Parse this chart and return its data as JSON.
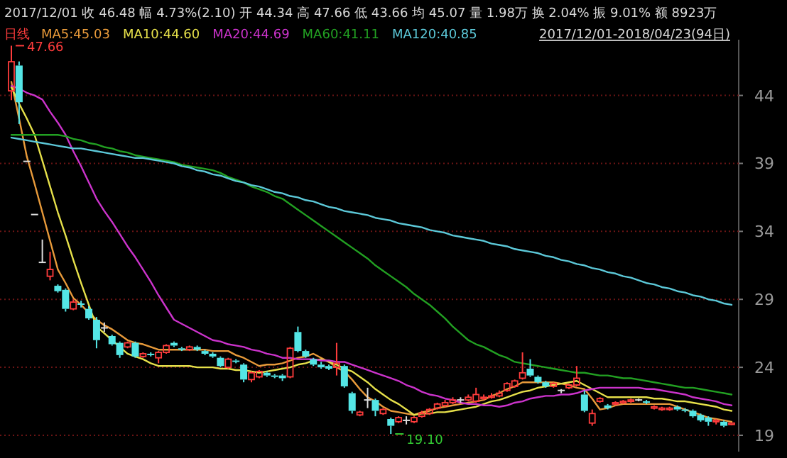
{
  "chart_data": {
    "type": "candlestick",
    "title": "2017/12/01  收 46.48  幅 4.73%(2.10)  开 44.34  高 47.66  低 43.66  均 45.07  量 1.98万  换 2.04%  振 9.01%  额 8923万",
    "subtitle": "2017/12/01-2018/04/23(94日)",
    "categories": [
      null,
      null,
      null,
      null,
      null,
      null,
      null,
      null,
      null,
      null,
      null,
      null,
      null,
      null,
      null,
      null,
      null,
      null,
      null,
      null,
      null,
      null,
      null,
      null,
      null,
      null,
      null,
      null,
      null,
      null,
      null,
      null,
      null,
      null,
      null,
      null,
      null,
      null,
      null,
      null,
      null,
      null,
      null,
      null,
      null,
      null,
      null,
      null,
      null,
      null,
      null,
      null,
      null,
      null,
      null,
      null,
      null,
      null,
      null,
      null,
      null,
      null,
      null,
      null,
      null,
      null,
      null,
      null,
      null,
      null,
      null,
      null,
      null,
      null,
      null,
      null,
      null,
      null,
      null,
      null,
      null,
      null,
      null,
      null,
      null,
      null,
      null,
      null,
      null,
      null,
      null,
      null,
      null,
      null
    ],
    "ohlc": [
      [
        44.34,
        47.66,
        43.66,
        46.48
      ],
      [
        46.2,
        46.5,
        41.9,
        43.5
      ],
      [
        39.15,
        39.15,
        39.15,
        39.15
      ],
      [
        35.24,
        35.24,
        35.24,
        35.24
      ],
      [
        31.72,
        33.4,
        31.72,
        31.72
      ],
      [
        30.7,
        32.5,
        30.4,
        31.2
      ],
      [
        30.0,
        30.1,
        29.5,
        29.6
      ],
      [
        29.7,
        29.8,
        28.1,
        28.3
      ],
      [
        28.3,
        29.0,
        28.2,
        28.8
      ],
      [
        28.7,
        28.9,
        28.4,
        28.6
      ],
      [
        28.3,
        28.5,
        27.5,
        27.6
      ],
      [
        27.5,
        27.7,
        25.4,
        26.0
      ],
      [
        26.9,
        27.3,
        26.6,
        26.9
      ],
      [
        26.3,
        26.4,
        25.6,
        25.7
      ],
      [
        25.8,
        25.9,
        24.7,
        24.9
      ],
      [
        25.5,
        25.9,
        25.4,
        25.8
      ],
      [
        25.8,
        25.9,
        24.7,
        24.8
      ],
      [
        24.8,
        25.1,
        24.7,
        25.0
      ],
      [
        25.0,
        25.1,
        24.8,
        24.9
      ],
      [
        24.7,
        25.2,
        24.3,
        25.1
      ],
      [
        25.1,
        25.7,
        25.0,
        25.6
      ],
      [
        25.8,
        25.9,
        25.5,
        25.6
      ],
      [
        25.4,
        25.5,
        25.2,
        25.3
      ],
      [
        25.3,
        25.6,
        25.2,
        25.5
      ],
      [
        25.5,
        25.6,
        25.2,
        25.3
      ],
      [
        25.2,
        25.3,
        24.9,
        25.0
      ],
      [
        25.0,
        25.1,
        24.7,
        24.8
      ],
      [
        24.7,
        24.8,
        24.0,
        24.1
      ],
      [
        24.0,
        24.7,
        23.9,
        24.6
      ],
      [
        24.5,
        24.6,
        24.3,
        24.4
      ],
      [
        24.2,
        24.3,
        22.9,
        23.1
      ],
      [
        23.1,
        23.7,
        22.9,
        23.6
      ],
      [
        23.3,
        23.8,
        23.2,
        23.7
      ],
      [
        23.6,
        23.7,
        23.3,
        23.4
      ],
      [
        23.4,
        23.5,
        23.2,
        23.3
      ],
      [
        23.4,
        23.5,
        23.0,
        23.2
      ],
      [
        23.3,
        25.5,
        23.2,
        25.4
      ],
      [
        26.6,
        27.0,
        25.1,
        25.2
      ],
      [
        25.2,
        25.3,
        24.7,
        24.8
      ],
      [
        24.6,
        24.7,
        24.1,
        24.2
      ],
      [
        24.2,
        24.4,
        23.9,
        24.0
      ],
      [
        24.1,
        24.2,
        23.8,
        23.9
      ],
      [
        24.0,
        25.8,
        23.4,
        24.3
      ],
      [
        24.1,
        24.2,
        22.5,
        22.6
      ],
      [
        22.1,
        22.2,
        20.6,
        20.8
      ],
      [
        20.5,
        20.8,
        20.4,
        20.7
      ],
      [
        21.6,
        22.5,
        21.0,
        21.6
      ],
      [
        21.6,
        21.7,
        20.4,
        20.8
      ],
      [
        20.6,
        21.0,
        20.5,
        20.9
      ],
      [
        20.2,
        20.3,
        19.1,
        19.7
      ],
      [
        20.0,
        20.4,
        19.9,
        20.3
      ],
      [
        20.1,
        20.4,
        19.8,
        20.1
      ],
      [
        20.0,
        20.4,
        19.9,
        20.3
      ],
      [
        20.4,
        20.8,
        20.3,
        20.6
      ],
      [
        20.6,
        21.0,
        20.5,
        20.9
      ],
      [
        21.0,
        21.4,
        20.9,
        21.3
      ],
      [
        21.2,
        21.6,
        21.1,
        21.4
      ],
      [
        21.4,
        21.8,
        21.3,
        21.6
      ],
      [
        21.6,
        21.8,
        21.4,
        21.6
      ],
      [
        21.6,
        22.0,
        21.5,
        21.8
      ],
      [
        21.5,
        22.5,
        21.4,
        22.0
      ],
      [
        21.7,
        22.0,
        21.6,
        21.8
      ],
      [
        21.8,
        22.1,
        21.7,
        21.9
      ],
      [
        21.9,
        22.3,
        21.8,
        22.1
      ],
      [
        22.3,
        22.9,
        22.2,
        22.8
      ],
      [
        22.6,
        23.1,
        22.5,
        23.0
      ],
      [
        23.2,
        25.1,
        23.1,
        23.6
      ],
      [
        23.9,
        24.6,
        23.3,
        23.4
      ],
      [
        23.3,
        23.4,
        22.8,
        22.9
      ],
      [
        22.9,
        23.0,
        22.5,
        22.6
      ],
      [
        22.6,
        22.9,
        22.5,
        22.8
      ],
      [
        22.3,
        22.4,
        22.1,
        22.3
      ],
      [
        22.5,
        22.8,
        22.4,
        22.7
      ],
      [
        22.7,
        24.1,
        22.6,
        23.2
      ],
      [
        22.0,
        22.3,
        20.7,
        20.8
      ],
      [
        19.9,
        20.9,
        19.7,
        20.6
      ],
      [
        21.5,
        21.8,
        21.4,
        21.7
      ],
      [
        21.2,
        21.3,
        20.9,
        21.0
      ],
      [
        21.3,
        21.5,
        21.2,
        21.4
      ],
      [
        21.4,
        21.6,
        21.3,
        21.5
      ],
      [
        21.5,
        21.7,
        21.4,
        21.6
      ],
      [
        21.6,
        21.7,
        21.5,
        21.6
      ],
      [
        21.5,
        21.6,
        21.3,
        21.4
      ],
      [
        21.0,
        21.2,
        20.9,
        21.1
      ],
      [
        20.9,
        21.1,
        20.8,
        21.0
      ],
      [
        20.9,
        21.1,
        20.8,
        21.0
      ],
      [
        21.1,
        21.2,
        20.8,
        20.9
      ],
      [
        20.9,
        21.0,
        20.7,
        20.8
      ],
      [
        20.8,
        20.9,
        20.3,
        20.4
      ],
      [
        20.5,
        20.6,
        20.0,
        20.1
      ],
      [
        20.3,
        20.4,
        19.7,
        20.0
      ],
      [
        20.0,
        20.2,
        19.8,
        20.1
      ],
      [
        20.0,
        20.1,
        19.6,
        19.7
      ],
      [
        19.8,
        19.95,
        19.75,
        19.9
      ]
    ],
    "series": [
      {
        "name": "MA5:45.03",
        "type": "line",
        "color": "#e89a3a",
        "values": [
          45.0,
          42.3,
          39.5,
          37.5,
          35.4,
          33.3,
          31.2,
          30.2,
          29.1,
          28.6,
          28.0,
          27.5,
          27.1,
          26.8,
          26.4,
          26.0,
          25.8,
          25.7,
          25.5,
          25.3,
          25.3,
          25.3,
          25.3,
          25.3,
          25.3,
          25.3,
          25.2,
          25.2,
          25.2,
          24.9,
          24.7,
          24.4,
          24.1,
          24.2,
          24.2,
          24.3,
          24.5,
          24.7,
          24.8,
          25.0,
          24.7,
          24.4,
          24.0,
          23.7,
          23.1,
          22.4,
          21.8,
          21.5,
          21.1,
          20.8,
          20.7,
          20.6,
          20.5,
          20.7,
          20.8,
          21.0,
          21.1,
          21.2,
          21.3,
          21.4,
          21.5,
          21.6,
          21.9,
          22.1,
          22.4,
          22.6,
          22.9,
          22.9,
          22.9,
          22.9,
          22.9,
          22.8,
          22.7,
          22.5,
          22.4,
          21.7,
          20.9,
          21.0,
          21.2,
          21.3,
          21.3,
          21.3,
          21.3,
          21.3,
          21.3,
          21.3,
          21.1,
          20.9,
          20.7,
          20.5,
          20.3,
          20.2,
          20.1,
          20.0
        ]
      },
      {
        "name": "MA10:44.60",
        "type": "line",
        "color": "#e6e04a",
        "values": [
          44.6,
          43.4,
          42.3,
          41.1,
          39.2,
          37.3,
          35.4,
          33.7,
          31.9,
          30.2,
          28.6,
          27.0,
          26.5,
          26.0,
          25.5,
          25.0,
          24.8,
          24.6,
          24.3,
          24.1,
          24.1,
          24.1,
          24.1,
          24.1,
          24.0,
          24.0,
          24.0,
          23.9,
          23.9,
          23.8,
          23.8,
          23.7,
          23.6,
          23.7,
          23.8,
          23.9,
          24.0,
          24.2,
          24.3,
          24.5,
          24.6,
          24.4,
          24.2,
          23.9,
          23.7,
          23.3,
          22.9,
          22.4,
          22.0,
          21.6,
          21.3,
          20.9,
          20.5,
          20.6,
          20.6,
          20.7,
          20.7,
          20.8,
          20.9,
          21.0,
          21.1,
          21.3,
          21.5,
          21.6,
          21.8,
          22.0,
          22.2,
          22.3,
          22.5,
          22.6,
          22.7,
          22.8,
          22.9,
          23.0,
          22.7,
          22.4,
          22.1,
          21.8,
          21.8,
          21.8,
          21.8,
          21.8,
          21.8,
          21.7,
          21.7,
          21.6,
          21.5,
          21.5,
          21.4,
          21.3,
          21.2,
          21.1,
          20.9,
          20.8
        ]
      },
      {
        "name": "MA20:44.69",
        "type": "line",
        "color": "#cc33cc",
        "values": [
          44.7,
          44.5,
          44.2,
          44.0,
          43.7,
          42.8,
          42.0,
          41.1,
          39.9,
          38.8,
          37.6,
          36.4,
          35.5,
          34.7,
          33.8,
          32.9,
          32.1,
          31.2,
          30.3,
          29.3,
          28.4,
          27.5,
          27.2,
          26.9,
          26.6,
          26.3,
          26.0,
          25.9,
          25.7,
          25.6,
          25.5,
          25.3,
          25.2,
          25.0,
          24.9,
          24.7,
          24.7,
          24.6,
          24.6,
          24.6,
          24.5,
          24.5,
          24.4,
          24.4,
          24.2,
          24.0,
          23.8,
          23.6,
          23.4,
          23.2,
          23.0,
          22.7,
          22.5,
          22.2,
          22.0,
          21.9,
          21.7,
          21.6,
          21.4,
          21.3,
          21.3,
          21.2,
          21.2,
          21.1,
          21.2,
          21.4,
          21.5,
          21.7,
          21.8,
          21.9,
          21.9,
          22.0,
          22.0,
          22.1,
          22.3,
          22.4,
          22.5,
          22.5,
          22.5,
          22.5,
          22.5,
          22.5,
          22.4,
          22.4,
          22.3,
          22.2,
          22.1,
          22.0,
          21.8,
          21.7,
          21.6,
          21.5,
          21.3,
          21.2
        ]
      },
      {
        "name": "MA60:41.11",
        "type": "line",
        "color": "#22a022",
        "values": [
          41.1,
          41.1,
          41.1,
          41.1,
          41.1,
          41.1,
          41.1,
          41.0,
          40.8,
          40.7,
          40.5,
          40.4,
          40.2,
          40.1,
          39.9,
          39.8,
          39.6,
          39.5,
          39.4,
          39.3,
          39.2,
          39.1,
          38.9,
          38.8,
          38.7,
          38.6,
          38.5,
          38.3,
          38.0,
          37.8,
          37.6,
          37.3,
          37.1,
          36.9,
          36.6,
          36.4,
          36.0,
          35.6,
          35.2,
          34.8,
          34.4,
          34.0,
          33.6,
          33.2,
          32.8,
          32.4,
          32.0,
          31.5,
          31.1,
          30.7,
          30.3,
          29.9,
          29.4,
          29.0,
          28.6,
          28.1,
          27.6,
          27.0,
          26.5,
          26.0,
          25.7,
          25.5,
          25.2,
          24.9,
          24.7,
          24.4,
          24.3,
          24.2,
          24.1,
          24.0,
          23.9,
          23.8,
          23.7,
          23.6,
          23.6,
          23.5,
          23.4,
          23.4,
          23.3,
          23.2,
          23.2,
          23.1,
          23.0,
          22.9,
          22.8,
          22.7,
          22.6,
          22.5,
          22.5,
          22.4,
          22.3,
          22.2,
          22.1,
          22.0
        ]
      },
      {
        "name": "MA120:40.85",
        "type": "line",
        "color": "#5cc8d8",
        "values": [
          40.9,
          40.8,
          40.7,
          40.6,
          40.5,
          40.4,
          40.3,
          40.2,
          40.1,
          40.1,
          40.0,
          39.9,
          39.8,
          39.7,
          39.6,
          39.5,
          39.4,
          39.4,
          39.3,
          39.2,
          39.1,
          39.0,
          38.8,
          38.7,
          38.5,
          38.4,
          38.2,
          38.1,
          37.9,
          37.7,
          37.6,
          37.4,
          37.3,
          37.1,
          36.9,
          36.8,
          36.6,
          36.5,
          36.3,
          36.2,
          36.0,
          35.8,
          35.7,
          35.5,
          35.4,
          35.3,
          35.2,
          35.0,
          34.9,
          34.8,
          34.6,
          34.5,
          34.4,
          34.3,
          34.1,
          34.0,
          33.9,
          33.7,
          33.6,
          33.5,
          33.4,
          33.3,
          33.1,
          33.0,
          32.9,
          32.7,
          32.6,
          32.5,
          32.4,
          32.2,
          32.1,
          31.9,
          31.8,
          31.6,
          31.5,
          31.3,
          31.2,
          31.0,
          30.9,
          30.7,
          30.6,
          30.4,
          30.2,
          30.1,
          29.9,
          29.8,
          29.6,
          29.5,
          29.3,
          29.2,
          29.0,
          28.9,
          28.7,
          28.6
        ]
      }
    ],
    "annotations": [
      "日线",
      "47.66",
      "19.10"
    ],
    "ylim": [
      17.8,
      48.1
    ],
    "yticks": [
      19,
      24,
      29,
      34,
      39,
      44
    ],
    "grid": "y",
    "legend": "top left",
    "tick_labels": "y"
  }
}
